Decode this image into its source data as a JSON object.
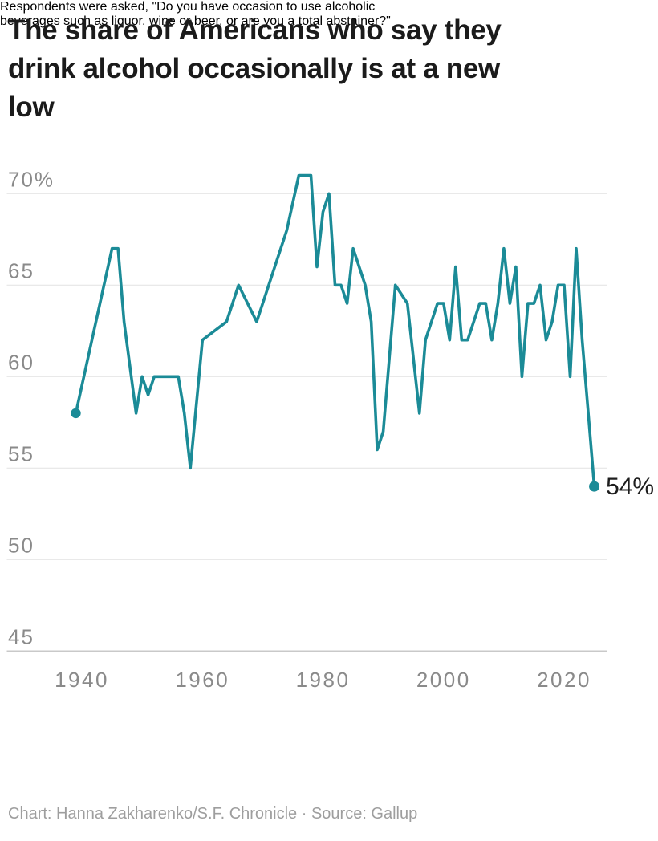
{
  "title": {
    "full": "The share of Americans who say they drink alcohol occasionally is at a new low",
    "lines": [
      "The share of Americans who say they",
      "drink alcohol occasionally is at a new",
      "low"
    ]
  },
  "chart_data": {
    "type": "line",
    "title": "The share of Americans who say they drink alcohol occasionally is at a new low",
    "xlabel": "",
    "ylabel": "",
    "grid": true,
    "legend": false,
    "xlim": [
      1939,
      2025
    ],
    "ylim": [
      45,
      71
    ],
    "series": [
      {
        "name": "Share of Americans who say they drink alcohol",
        "x": [
          1939,
          1945,
          1946,
          1947,
          1949,
          1950,
          1951,
          1952,
          1956,
          1957,
          1958,
          1960,
          1964,
          1966,
          1969,
          1974,
          1976,
          1977,
          1978,
          1979,
          1980,
          1981,
          1982,
          1983,
          1984,
          1985,
          1987,
          1988,
          1989,
          1990,
          1992,
          1994,
          1996,
          1997,
          1999,
          2000,
          2001,
          2002,
          2003,
          2004,
          2005,
          2006,
          2007,
          2008,
          2009,
          2010,
          2011,
          2012,
          2013,
          2014,
          2015,
          2016,
          2017,
          2018,
          2019,
          2020,
          2021,
          2022,
          2023,
          2024,
          2025
        ],
        "y": [
          58,
          67,
          67,
          63,
          58,
          60,
          59,
          60,
          60,
          58,
          55,
          62,
          63,
          65,
          63,
          68,
          71,
          71,
          71,
          66,
          69,
          70,
          65,
          65,
          64,
          67,
          65,
          63,
          56,
          57,
          65,
          64,
          58,
          62,
          64,
          64,
          62,
          66,
          62,
          62,
          63,
          64,
          64,
          62,
          64,
          67,
          64,
          66,
          60,
          64,
          64,
          65,
          62,
          63,
          65,
          65,
          60,
          67,
          62,
          58,
          54
        ]
      }
    ],
    "y_ticks": [
      {
        "v": 70,
        "label": "70%"
      },
      {
        "v": 65,
        "label": "65"
      },
      {
        "v": 60,
        "label": "60"
      },
      {
        "v": 55,
        "label": "55"
      },
      {
        "v": 50,
        "label": "50"
      },
      {
        "v": 45,
        "label": "45"
      }
    ],
    "x_ticks": [
      {
        "v": 1940,
        "label": "1940"
      },
      {
        "v": 1960,
        "label": "1960"
      },
      {
        "v": 1980,
        "label": "1980"
      },
      {
        "v": 2000,
        "label": "2000"
      },
      {
        "v": 2020,
        "label": "2020"
      }
    ],
    "end_label": "54%",
    "colors": {
      "line": "#1b8b97",
      "grid": "#e6e6e6",
      "axis_line": "#c9c9c9",
      "tick_text": "#8a8a8a",
      "end_label_text": "#1e1e1e"
    }
  },
  "footer": {
    "note_full": "Respondents were asked, \"Do you have occasion to use alcoholic beverages such as liquor, wine or beer, or are you a total abstainer?\"",
    "note_lines": [
      "Respondents were asked, \"Do you have occasion to use alcoholic",
      "beverages such as liquor, wine or beer, or are you a total abstainer?\""
    ],
    "credit": "Chart: Hanna Zakharenko/S.F. Chronicle · Source: Gallup"
  }
}
